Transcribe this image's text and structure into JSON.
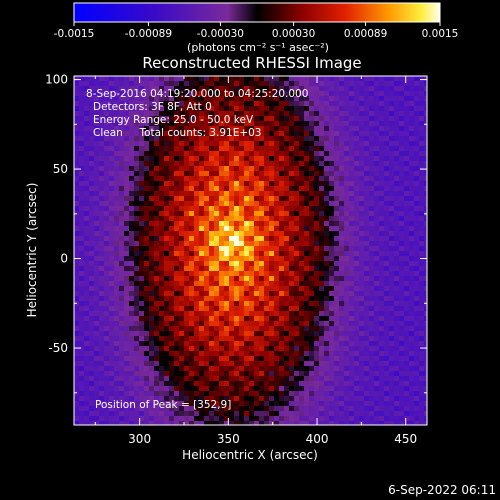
{
  "colorbar": {
    "tick_labels": [
      "-0.0015",
      "-0.00089",
      "-0.00030",
      "0.00030",
      "0.00089",
      "0.0015"
    ],
    "tick_values": [
      -0.0015,
      -0.00089,
      -0.0003,
      0.0003,
      0.00089,
      0.0015
    ],
    "range": [
      -0.0015,
      0.0015
    ],
    "unit_label": "(photons cm⁻² s⁻¹ asec⁻²)"
  },
  "chart_data": {
    "type": "heatmap",
    "title": "Reconstructed RHESSI Image",
    "xlabel": "Heliocentric X (arcsec)",
    "ylabel": "Heliocentric Y (arcsec)",
    "xlim": [
      263,
      462
    ],
    "ylim": [
      -93,
      102
    ],
    "x_ticks": [
      300,
      350,
      400,
      450
    ],
    "y_ticks": [
      -50,
      0,
      50,
      100
    ],
    "peak": {
      "x": 352,
      "y": 9
    },
    "colormap": "hot with negative blue-purple",
    "annotations": [
      "8-Sep-2016 04:19:20.000 to 04:25:20.000",
      "Detectors: 3F 8F, Att 0",
      "Energy Range: 25.0 - 50.0 keV",
      "Clean     Total counts: 3.91E+03",
      "Position of Peak = [352,9]"
    ]
  },
  "footer": {
    "timestamp": "6-Sep-2022 06:11"
  }
}
